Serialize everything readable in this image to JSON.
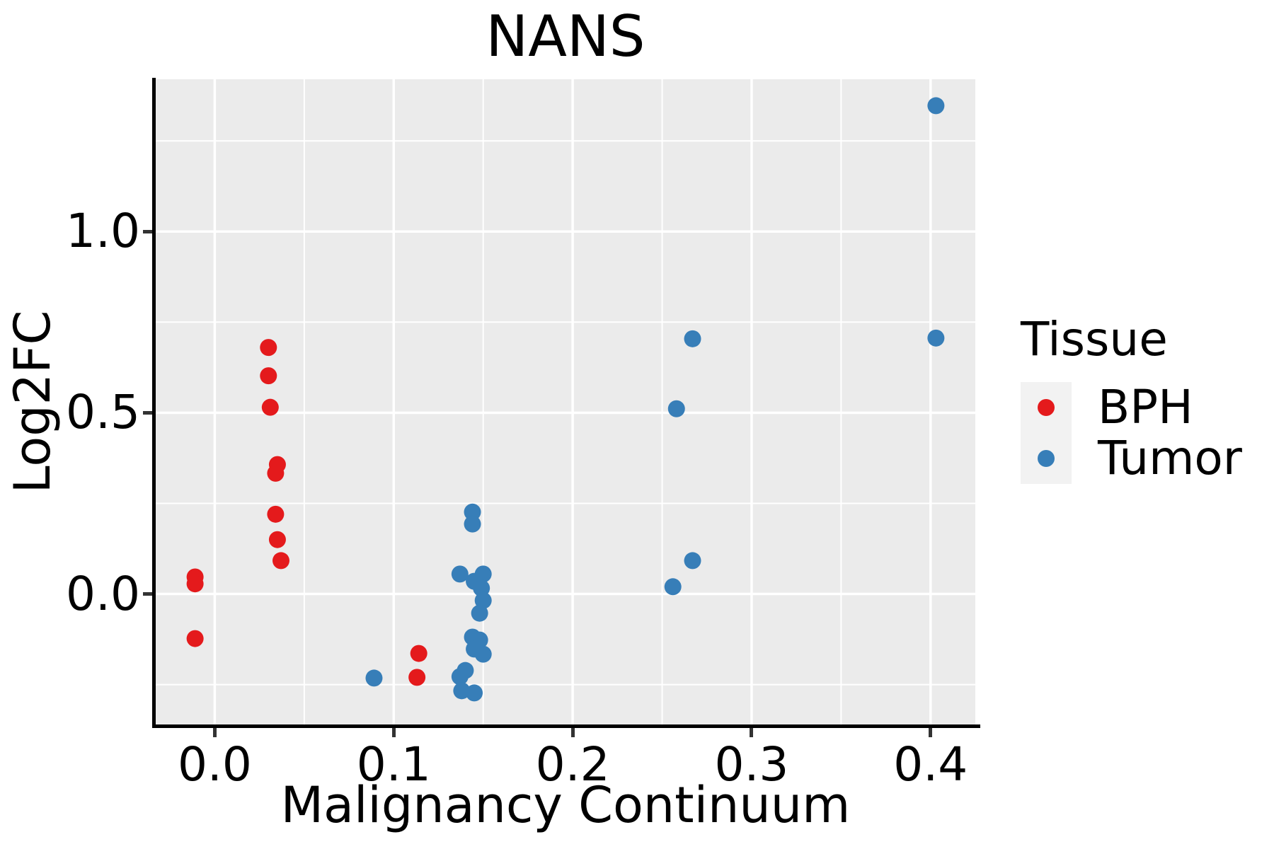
{
  "title": "NANS",
  "chart_data": {
    "type": "scatter",
    "title": "NANS",
    "xlabel": "Malignancy Continuum",
    "ylabel": "Log2FC",
    "xlim": [
      -0.033,
      0.425
    ],
    "ylim": [
      -0.36,
      1.42
    ],
    "x_major_ticks": [
      0.0,
      0.1,
      0.2,
      0.3,
      0.4
    ],
    "x_minor_ticks": [
      0.05,
      0.15,
      0.25,
      0.35
    ],
    "y_major_ticks": [
      0.0,
      0.5,
      1.0
    ],
    "y_minor_ticks": [
      -0.25,
      0.25,
      0.75,
      1.25
    ],
    "tick_decimals": 1,
    "grid": "on",
    "panel_background": "#ebebeb",
    "grid_color": "#ffffff",
    "point_radius_px": 12,
    "legend_position": "right",
    "legend_title": "Tissue",
    "series": [
      {
        "name": "BPH",
        "color": "#e41a1c",
        "points": [
          [
            -0.011,
            0.047
          ],
          [
            -0.011,
            0.028
          ],
          [
            -0.011,
            -0.123
          ],
          [
            0.03,
            0.68
          ],
          [
            0.03,
            0.602
          ],
          [
            0.031,
            0.515
          ],
          [
            0.035,
            0.357
          ],
          [
            0.034,
            0.333
          ],
          [
            0.034,
            0.22
          ],
          [
            0.035,
            0.15
          ],
          [
            0.037,
            0.092
          ],
          [
            0.114,
            -0.164
          ],
          [
            0.113,
            -0.23
          ]
        ]
      },
      {
        "name": "Tumor",
        "color": "#377eb8",
        "points": [
          [
            0.089,
            -0.232
          ],
          [
            0.144,
            0.226
          ],
          [
            0.144,
            0.193
          ],
          [
            0.137,
            0.055
          ],
          [
            0.15,
            0.055
          ],
          [
            0.145,
            0.035
          ],
          [
            0.149,
            0.016
          ],
          [
            0.15,
            -0.018
          ],
          [
            0.148,
            -0.053
          ],
          [
            0.144,
            -0.119
          ],
          [
            0.148,
            -0.127
          ],
          [
            0.145,
            -0.152
          ],
          [
            0.15,
            -0.166
          ],
          [
            0.14,
            -0.211
          ],
          [
            0.137,
            -0.228
          ],
          [
            0.138,
            -0.267
          ],
          [
            0.145,
            -0.273
          ],
          [
            0.258,
            0.511
          ],
          [
            0.267,
            0.704
          ],
          [
            0.256,
            0.02
          ],
          [
            0.267,
            0.092
          ],
          [
            0.403,
            1.347
          ],
          [
            0.403,
            0.706
          ]
        ]
      }
    ]
  },
  "legend": {
    "title": "Tissue",
    "items": [
      {
        "label": "BPH",
        "color": "#e41a1c"
      },
      {
        "label": "Tumor",
        "color": "#377eb8"
      }
    ]
  },
  "colors": {
    "panel_background": "#ebebeb",
    "gridline": "#ffffff",
    "axis_spine": "#000000",
    "tick_mark": "#333333",
    "text": "#000000",
    "legend_key_background": "#f2f2f2",
    "bph": "#e41a1c",
    "tumor": "#377eb8"
  }
}
